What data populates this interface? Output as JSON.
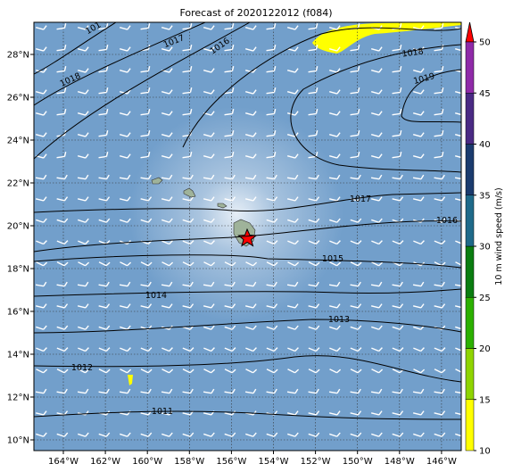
{
  "title": "Forecast of 2020122012 (f084)",
  "map": {
    "x_ticks": [
      "164°W",
      "162°W",
      "160°W",
      "158°W",
      "156°W",
      "154°W",
      "152°W",
      "150°W",
      "148°W",
      "146°W"
    ],
    "y_ticks": [
      "28°N",
      "26°N",
      "24°N",
      "22°N",
      "20°N",
      "18°N",
      "16°N",
      "14°N",
      "12°N",
      "10°N"
    ],
    "contour_labels": [
      "101",
      "1017",
      "1016",
      "1018",
      "1018",
      "1019",
      "1017",
      "1016",
      "1015",
      "1014",
      "1013",
      "1012",
      "1011"
    ]
  },
  "colorbar": {
    "label": "10 m wind speed (m/s)",
    "ticks": [
      "10",
      "15",
      "20",
      "25",
      "30",
      "35",
      "40",
      "45",
      "50"
    ]
  }
}
